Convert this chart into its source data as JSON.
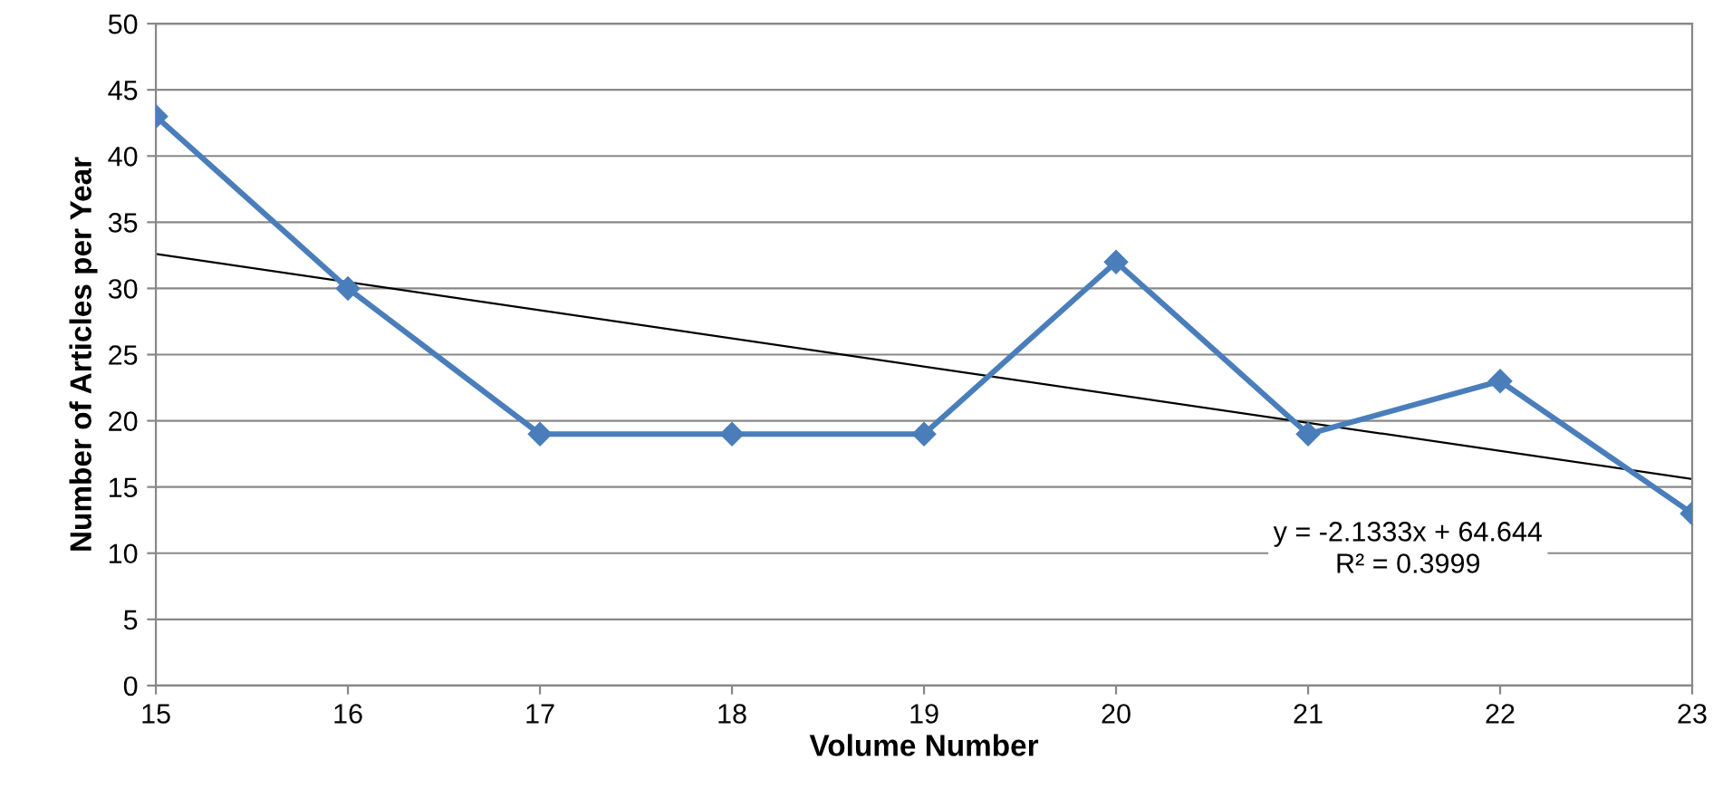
{
  "chart_data": {
    "type": "line",
    "xlabel": "Volume Number",
    "ylabel": "Number of Articles per Year",
    "xlim": [
      15,
      23
    ],
    "xticks": [
      15,
      16,
      17,
      18,
      19,
      20,
      21,
      22,
      23
    ],
    "ylim": [
      0,
      50
    ],
    "yticks": [
      0,
      5,
      10,
      15,
      20,
      25,
      30,
      35,
      40,
      45,
      50
    ],
    "grid": "y",
    "legend": false,
    "series": [
      {
        "color": "#4a7ebb",
        "marker": "diamond",
        "x": [
          15,
          16,
          17,
          18,
          19,
          20,
          21,
          22,
          23
        ],
        "values": [
          43,
          30,
          19,
          19,
          19,
          32,
          19,
          23,
          13
        ]
      },
      {
        "color": "#000000",
        "marker": "none",
        "x": [
          15,
          23
        ],
        "values": [
          32.6,
          15.6
        ]
      }
    ],
    "annotations": [
      "y = -2.1333x + 64.644",
      "R² = 0.3999"
    ]
  }
}
